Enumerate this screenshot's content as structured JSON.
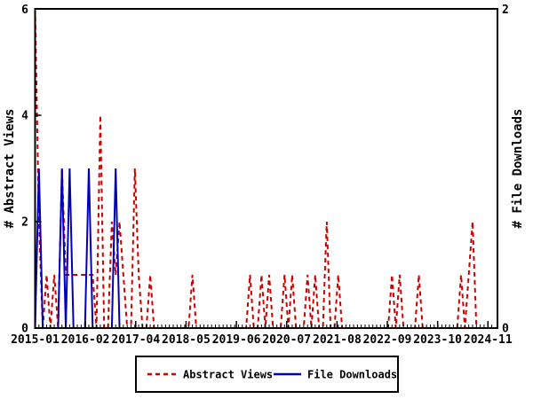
{
  "chart_data": {
    "type": "line",
    "title": "",
    "background": "#ffffff",
    "grid": false,
    "legend_position": "bottom-center",
    "x_axis": {
      "start_month": "2015-01",
      "months_count": 120,
      "minor_tick_unit": "month",
      "tick_labels": [
        "2015-01",
        "2016-02",
        "2017-04",
        "2018-05",
        "2019-06",
        "2020-07",
        "2021-08",
        "2022-09",
        "2023-10",
        "2024-11"
      ]
    },
    "y_left": {
      "label": "# Abstract Views",
      "range": [
        0,
        6
      ],
      "ticks": [
        "0",
        "2",
        "4",
        "6"
      ]
    },
    "y_right": {
      "label": "# File Downloads",
      "range": [
        0,
        2
      ],
      "ticks": [
        "0",
        "2"
      ]
    },
    "series": [
      {
        "name": "Abstract Views",
        "color": "#cc0000",
        "style": "dashed",
        "axis": "left",
        "values": [
          6,
          2,
          0,
          1,
          0,
          1,
          0,
          3,
          1,
          1,
          1,
          1,
          1,
          1,
          1,
          1,
          0,
          4,
          0,
          0,
          2,
          1,
          2,
          1,
          0,
          0,
          3,
          1,
          0,
          0,
          1,
          0,
          0,
          0,
          0,
          0,
          0,
          0,
          0,
          0,
          0,
          1,
          0,
          0,
          0,
          0,
          0,
          0,
          0,
          0,
          0,
          0,
          0,
          0,
          0,
          0,
          1,
          0,
          0,
          1,
          0,
          1,
          0,
          0,
          0,
          1,
          0,
          1,
          0,
          0,
          0,
          1,
          0,
          1,
          0,
          0,
          2,
          0,
          0,
          1,
          0,
          0,
          0,
          0,
          0,
          0,
          0,
          0,
          0,
          0,
          0,
          0,
          0,
          1,
          0,
          1,
          0,
          0,
          0,
          0,
          1,
          0,
          0,
          0,
          0,
          0,
          0,
          0,
          0,
          0,
          0,
          1,
          0,
          1,
          2,
          0,
          0,
          0,
          0,
          0
        ]
      },
      {
        "name": "File Downloads",
        "color": "#0000bb",
        "style": "solid",
        "axis": "right",
        "values": [
          0,
          1,
          0,
          0,
          0,
          0,
          0,
          1,
          0,
          1,
          0,
          0,
          0,
          0,
          1,
          0,
          0,
          0,
          0,
          0,
          0,
          1,
          0,
          0,
          0,
          0,
          0,
          0,
          0,
          0,
          0,
          0,
          0,
          0,
          0,
          0,
          0,
          0,
          0,
          0,
          0,
          0,
          0,
          0,
          0,
          0,
          0,
          0,
          0,
          0,
          0,
          0,
          0,
          0,
          0,
          0,
          0,
          0,
          0,
          0,
          0,
          0,
          0,
          0,
          0,
          0,
          0,
          0,
          0,
          0,
          0,
          0,
          0,
          0,
          0,
          0,
          0,
          0,
          0,
          0,
          0,
          0,
          0,
          0,
          0,
          0,
          0,
          0,
          0,
          0,
          0,
          0,
          0,
          0,
          0,
          0,
          0,
          0,
          0,
          0,
          0,
          0,
          0,
          0,
          0,
          0,
          0,
          0,
          0,
          0,
          0,
          0,
          0,
          0,
          0,
          0,
          0,
          0,
          0,
          0
        ]
      }
    ]
  }
}
